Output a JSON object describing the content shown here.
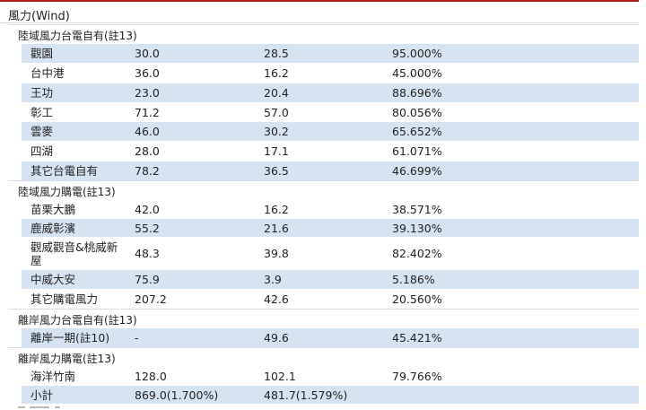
{
  "title": "風力(Wind)",
  "sections": [
    {
      "label": "陸域風力台電自有(註13)",
      "rows": [
        {
          "name": "觀園",
          "a": "30.0",
          "b": "28.5",
          "c": "95.000%"
        },
        {
          "name": "台中港",
          "a": "36.0",
          "b": "16.2",
          "c": "45.000%"
        },
        {
          "name": "王功",
          "a": "23.0",
          "b": "20.4",
          "c": "88.696%"
        },
        {
          "name": "彰工",
          "a": "71.2",
          "b": "57.0",
          "c": "80.056%"
        },
        {
          "name": "雲麥",
          "a": "46.0",
          "b": "30.2",
          "c": "65.652%"
        },
        {
          "name": "四湖",
          "a": "28.0",
          "b": "17.1",
          "c": "61.071%"
        },
        {
          "name": "其它台電自有",
          "a": "78.2",
          "b": "36.5",
          "c": "46.699%"
        }
      ]
    },
    {
      "label": "陸域風力購電(註13)",
      "rows": [
        {
          "name": "苗栗大鵬",
          "a": "42.0",
          "b": "16.2",
          "c": "38.571%"
        },
        {
          "name": "鹿威彰濱",
          "a": "55.2",
          "b": "21.6",
          "c": "39.130%"
        },
        {
          "name": "觀威觀音&桃威新屋",
          "a": "48.3",
          "b": "39.8",
          "c": "82.402%"
        },
        {
          "name": "中威大安",
          "a": "75.9",
          "b": "3.9",
          "c": "5.186%"
        },
        {
          "name": "其它購電風力",
          "a": "207.2",
          "b": "42.6",
          "c": "20.560%"
        }
      ]
    },
    {
      "label": "離岸風力台電自有(註13)",
      "rows": [
        {
          "name": "離岸一期(註10)",
          "a": "-",
          "b": "49.6",
          "c": "45.421%"
        }
      ]
    },
    {
      "label": "離岸風力購電(註13)",
      "rows": [
        {
          "name": "海洋竹南",
          "a": "128.0",
          "b": "102.1",
          "c": "79.766%"
        },
        {
          "name": "小計",
          "a": "869.0(1.700%)",
          "b": "481.7(1.579%)",
          "c": ""
        }
      ]
    }
  ]
}
